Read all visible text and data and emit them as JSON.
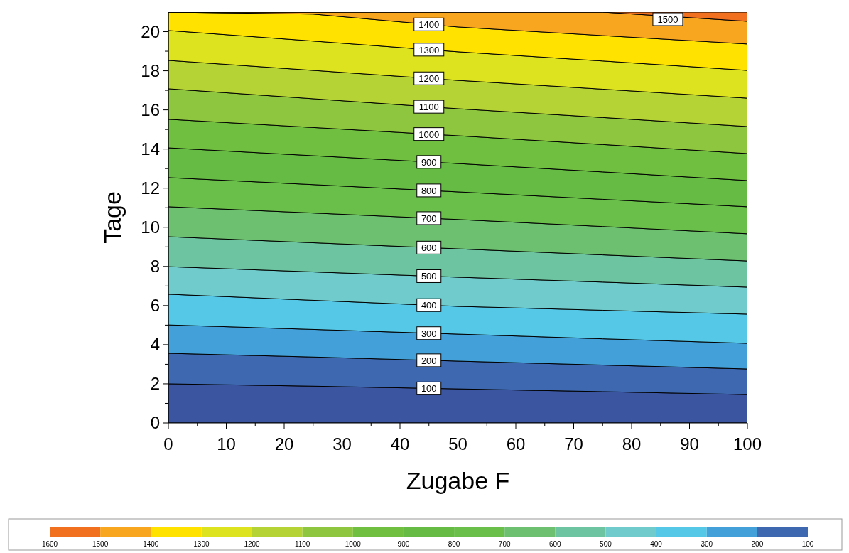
{
  "chart_data": {
    "type": "area",
    "stacked": true,
    "xlabel": "Zugabe F",
    "ylabel": "Tage",
    "xlim": [
      0,
      100
    ],
    "ylim": [
      0,
      21
    ],
    "xticks": [
      0,
      {
        "value": 5,
        "label": null
      },
      10,
      {
        "value": 15,
        "label": null
      },
      20,
      {
        "value": 25,
        "label": null
      },
      30,
      {
        "value": 35,
        "label": null
      },
      40,
      {
        "value": 45,
        "label": null
      },
      50,
      {
        "value": 55,
        "label": null
      },
      60,
      {
        "value": 65,
        "label": null
      },
      70,
      {
        "value": 75,
        "label": null
      },
      80,
      {
        "value": 85,
        "label": null
      },
      90,
      {
        "value": 95,
        "label": null
      },
      100
    ],
    "yticks": [
      0,
      {
        "value": 1,
        "label": null
      },
      2,
      {
        "value": 3,
        "label": null
      },
      4,
      {
        "value": 5,
        "label": null
      },
      6,
      {
        "value": 7,
        "label": null
      },
      8,
      {
        "value": 9,
        "label": null
      },
      10,
      {
        "value": 11,
        "label": null
      },
      12,
      {
        "value": 13,
        "label": null
      },
      14,
      {
        "value": 15,
        "label": null
      },
      16,
      {
        "value": 17,
        "label": null
      },
      18,
      {
        "value": 19,
        "label": null
      },
      20
    ],
    "x": [
      0,
      25,
      50,
      75,
      100
    ],
    "series": [
      {
        "name": "100",
        "color": "#3b55a0",
        "values": [
          2.0,
          1.88,
          1.74,
          1.6,
          1.45
        ]
      },
      {
        "name": "200",
        "color": "#3e68b0",
        "values": [
          1.56,
          1.49,
          1.42,
          1.36,
          1.31
        ]
      },
      {
        "name": "300",
        "color": "#44a0d8",
        "values": [
          1.45,
          1.41,
          1.38,
          1.34,
          1.31
        ]
      },
      {
        "name": "400",
        "color": "#55c8e8",
        "values": [
          1.57,
          1.49,
          1.42,
          1.46,
          1.49
        ]
      },
      {
        "name": "500",
        "color": "#70cccc",
        "values": [
          1.41,
          1.45,
          1.49,
          1.44,
          1.38
        ]
      },
      {
        "name": "600",
        "color": "#6cc4a0",
        "values": [
          1.53,
          1.49,
          1.45,
          1.39,
          1.34
        ]
      },
      {
        "name": "700",
        "color": "#6cc070",
        "values": [
          1.53,
          1.52,
          1.5,
          1.45,
          1.39
        ]
      },
      {
        "name": "800",
        "color": "#6abf4b",
        "values": [
          1.49,
          1.45,
          1.41,
          1.39,
          1.38
        ]
      },
      {
        "name": "900",
        "color": "#66bb44",
        "values": [
          1.52,
          1.48,
          1.45,
          1.4,
          1.34
        ]
      },
      {
        "name": "1000",
        "color": "#70bf40",
        "values": [
          1.46,
          1.44,
          1.42,
          1.4,
          1.38
        ]
      },
      {
        "name": "1100",
        "color": "#8ec63f",
        "values": [
          1.56,
          1.47,
          1.38,
          1.38,
          1.38
        ]
      },
      {
        "name": "1200",
        "color": "#b5d334",
        "values": [
          1.45,
          1.45,
          1.45,
          1.45,
          1.45
        ]
      },
      {
        "name": "1300",
        "color": "#dde31f",
        "values": [
          1.53,
          1.5,
          1.46,
          1.44,
          1.42
        ]
      },
      {
        "name": "1400",
        "color": "#ffe200",
        "values": [
          0.94,
          1.38,
          1.27,
          1.3,
          1.35
        ]
      },
      {
        "name": "1500",
        "color": "#f8a520",
        "values": [
          0,
          0.1,
          0.76,
          1.2,
          1.16
        ]
      },
      {
        "color": "#f07020",
        "values": [
          0,
          0,
          0,
          0,
          0.47
        ]
      }
    ],
    "clim": [
      1600,
      100
    ],
    "cticks": [
      1600,
      1500,
      1400,
      1300,
      1200,
      1100,
      1000,
      900,
      800,
      700,
      600,
      500,
      400,
      300,
      200,
      100
    ],
    "grid": false
  }
}
